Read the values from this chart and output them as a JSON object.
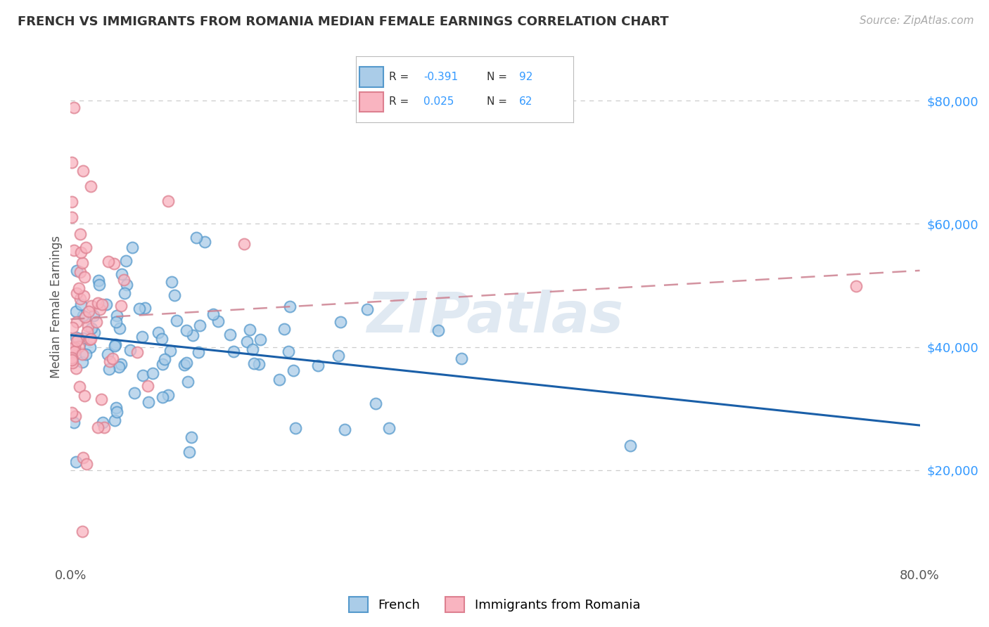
{
  "title": "FRENCH VS IMMIGRANTS FROM ROMANIA MEDIAN FEMALE EARNINGS CORRELATION CHART",
  "source": "Source: ZipAtlas.com",
  "ylabel": "Median Female Earnings",
  "ytick_values": [
    20000,
    40000,
    60000,
    80000
  ],
  "ytick_labels": [
    "$20,000",
    "$40,000",
    "$60,000",
    "$80,000"
  ],
  "xlim": [
    0.0,
    80.0
  ],
  "ylim": [
    5000,
    88000
  ],
  "french_R": -0.391,
  "french_N": 92,
  "romanian_R": 0.025,
  "romanian_N": 62,
  "french_face": "#aacce8",
  "french_edge": "#5599cc",
  "romanian_face": "#f9b4c0",
  "romanian_edge": "#dd8090",
  "french_line_color": "#1a5fa8",
  "romanian_line_color": "#cc8090",
  "watermark": "ZIPatlas",
  "legend_french_label": "French",
  "legend_romanian_label": "Immigrants from Romania",
  "bg_color": "#ffffff",
  "title_color": "#333333",
  "source_color": "#aaaaaa",
  "axis_label_color": "#555555",
  "yaxis_tick_color": "#3399ff",
  "grid_color": "#cccccc",
  "french_line_solid": true,
  "romanian_line_dashed": true
}
